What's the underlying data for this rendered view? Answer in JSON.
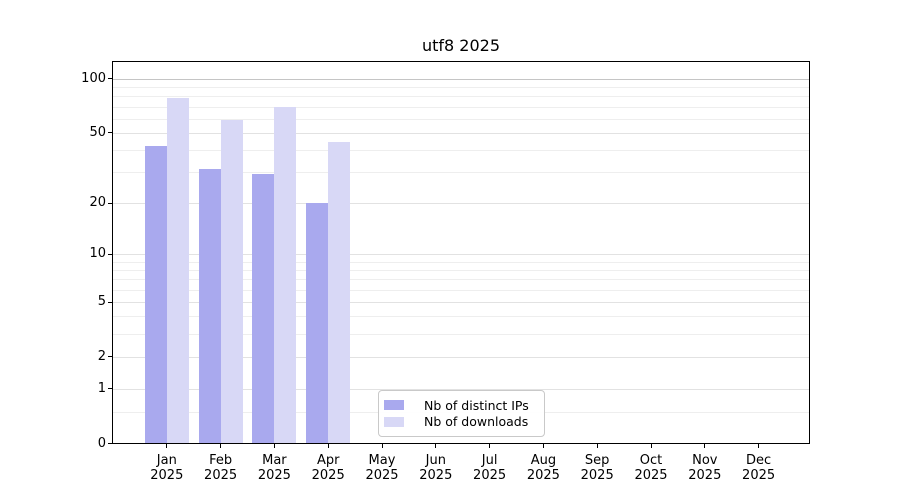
{
  "title": "utf8 2025",
  "legend": {
    "items": [
      {
        "label": "Nb of distinct IPs",
        "color": "#a9a9ee"
      },
      {
        "label": "Nb of downloads",
        "color": "#d8d8f6"
      }
    ]
  },
  "colors": {
    "bar_distinct_ips": "#a9a9ee",
    "bar_downloads": "#d8d8f6",
    "grid_major": "#e2e2e2",
    "grid_minor": "#eeeeee",
    "grid_top_100": "#c5c5c5",
    "axis": "#000000",
    "legend_border": "#c9c9c9"
  },
  "y_axis": {
    "tick_labels": [
      "0",
      "1",
      "2",
      "5",
      "10",
      "20",
      "50",
      "100"
    ]
  },
  "x_axis": {
    "months": [
      "Jan",
      "Feb",
      "Mar",
      "Apr",
      "May",
      "Jun",
      "Jul",
      "Aug",
      "Sep",
      "Oct",
      "Nov",
      "Dec"
    ],
    "year": "2025"
  },
  "chart_data": {
    "type": "bar",
    "title": "utf8 2025",
    "categories": [
      "Jan 2025",
      "Feb 2025",
      "Mar 2025",
      "Apr 2025",
      "May 2025",
      "Jun 2025",
      "Jul 2025",
      "Aug 2025",
      "Sep 2025",
      "Oct 2025",
      "Nov 2025",
      "Dec 2025"
    ],
    "series": [
      {
        "name": "Nb of distinct IPs",
        "color": "#a9a9ee",
        "values": [
          42,
          31,
          29,
          20,
          null,
          null,
          null,
          null,
          null,
          null,
          null,
          null
        ]
      },
      {
        "name": "Nb of downloads",
        "color": "#d8d8f6",
        "values": [
          78,
          59,
          69,
          44,
          null,
          null,
          null,
          null,
          null,
          null,
          null,
          null
        ]
      }
    ],
    "xlabel": "",
    "ylabel": "",
    "y_scale": "log1p",
    "y_major_ticks": [
      0,
      1,
      2,
      5,
      10,
      20,
      50,
      100
    ],
    "y_minor_ticks": [
      0.5,
      3,
      4,
      6,
      7,
      8,
      9,
      30,
      40,
      60,
      70,
      80,
      90
    ],
    "ylim": [
      0,
      125
    ],
    "grid": "horizontal",
    "legend_position": "lower-center-inside"
  }
}
